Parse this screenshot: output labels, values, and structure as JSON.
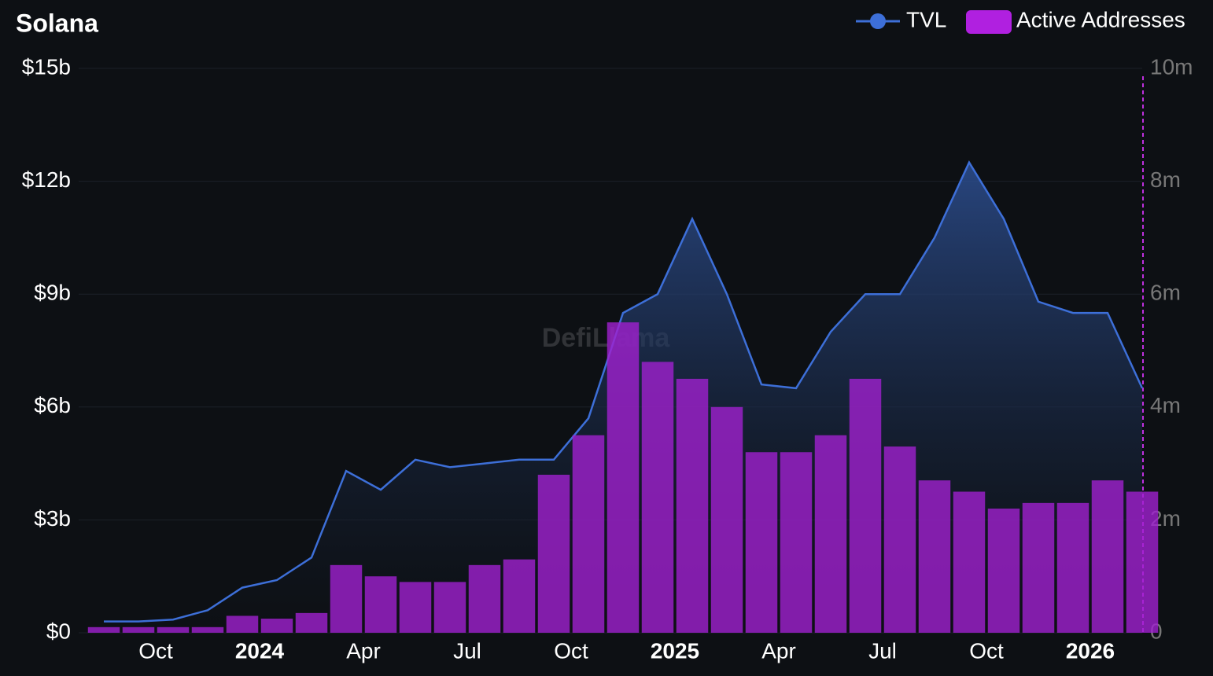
{
  "chart_data": {
    "type": "bar-line",
    "title": "Solana",
    "watermark": "DefiLlama",
    "x": [
      "2023-08",
      "2023-09",
      "2023-10",
      "2023-11",
      "2023-12",
      "2024-01",
      "2024-02",
      "2024-03",
      "2024-04",
      "2024-05",
      "2024-06",
      "2024-07",
      "2024-08",
      "2024-09",
      "2024-10",
      "2024-11",
      "2024-12",
      "2025-01",
      "2025-02",
      "2025-03",
      "2025-04",
      "2025-05",
      "2025-06",
      "2025-07",
      "2025-08",
      "2025-09",
      "2025-10",
      "2025-11",
      "2025-12",
      "2026-01",
      "2026-02"
    ],
    "xlim": [
      "2023-08",
      "2026-02"
    ],
    "xticks": [
      {
        "value": "2023-10",
        "label": "Oct"
      },
      {
        "value": "2024-01",
        "label": "2024"
      },
      {
        "value": "2024-04",
        "label": "Apr"
      },
      {
        "value": "2024-07",
        "label": "Jul"
      },
      {
        "value": "2024-10",
        "label": "Oct"
      },
      {
        "value": "2025-01",
        "label": "2025"
      },
      {
        "value": "2025-04",
        "label": "Apr"
      },
      {
        "value": "2025-07",
        "label": "Jul"
      },
      {
        "value": "2025-10",
        "label": "Oct"
      },
      {
        "value": "2026-01",
        "label": "2026"
      }
    ],
    "ylim": [
      0,
      15
    ],
    "yticks": [
      {
        "value": 0,
        "label": "$0"
      },
      {
        "value": 3,
        "label": "$3b"
      },
      {
        "value": 6,
        "label": "$6b"
      },
      {
        "value": 9,
        "label": "$9b"
      },
      {
        "value": 12,
        "label": "$12b"
      },
      {
        "value": 15,
        "label": "$15b"
      }
    ],
    "y2lim": [
      0,
      10
    ],
    "y2ticks": [
      0,
      {
        "value": 2,
        "label": "2m"
      },
      {
        "value": 4,
        "label": "4m"
      },
      {
        "value": 6,
        "label": "6m"
      },
      {
        "value": 8,
        "label": "8m"
      },
      {
        "value": 10,
        "label": "10m"
      }
    ],
    "series": [
      {
        "name": "TVL",
        "type": "line",
        "color": "#3d6fd8",
        "values": [
          0.3,
          0.3,
          0.35,
          0.6,
          1.2,
          1.4,
          2.0,
          4.3,
          3.8,
          4.6,
          4.4,
          4.5,
          4.6,
          4.6,
          5.7,
          8.5,
          9.0,
          11.0,
          9.0,
          6.6,
          6.5,
          8.0,
          9.0,
          9.0,
          10.5,
          12.5,
          11.0,
          8.8,
          8.5,
          8.5,
          6.5
        ]
      },
      {
        "name": "Active Addresses",
        "type": "bar",
        "axis": "y2",
        "color": "#a020d0",
        "values": [
          0.1,
          0.1,
          0.1,
          0.1,
          0.3,
          0.25,
          0.35,
          1.2,
          1.0,
          0.9,
          0.9,
          1.2,
          1.3,
          2.8,
          3.5,
          5.5,
          4.8,
          4.5,
          4.0,
          3.2,
          3.2,
          3.5,
          4.5,
          3.3,
          2.7,
          2.5,
          2.2,
          2.3,
          2.3,
          2.7,
          2.5
        ]
      }
    ]
  }
}
